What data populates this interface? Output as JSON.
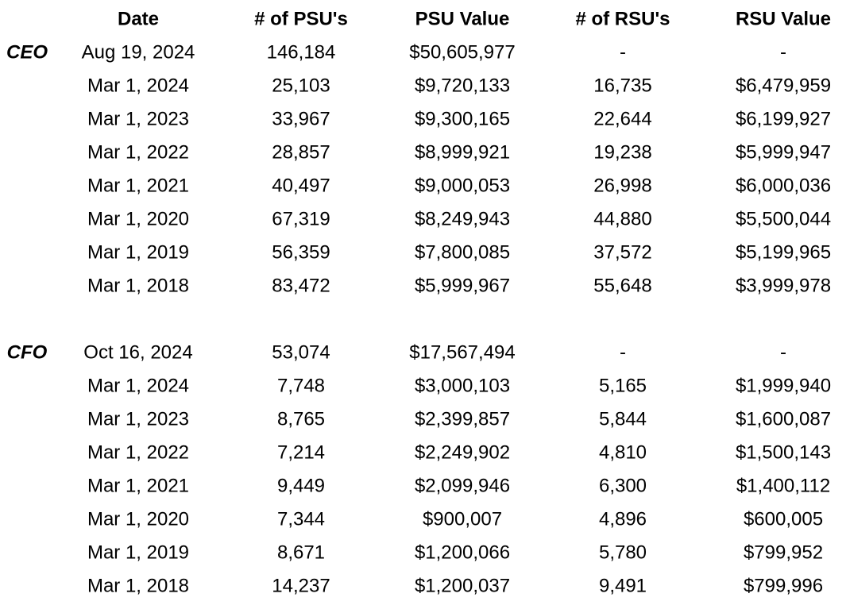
{
  "table": {
    "headers": [
      "Date",
      "# of PSU's",
      "PSU Value",
      "# of RSU's",
      "RSU Value"
    ],
    "groups": [
      {
        "label": "CEO",
        "rows": [
          [
            "Aug 19, 2024",
            "146,184",
            "$50,605,977",
            "-",
            "-"
          ],
          [
            "Mar 1, 2024",
            "25,103",
            "$9,720,133",
            "16,735",
            "$6,479,959"
          ],
          [
            "Mar 1, 2023",
            "33,967",
            "$9,300,165",
            "22,644",
            "$6,199,927"
          ],
          [
            "Mar 1, 2022",
            "28,857",
            "$8,999,921",
            "19,238",
            "$5,999,947"
          ],
          [
            "Mar 1, 2021",
            "40,497",
            "$9,000,053",
            "26,998",
            "$6,000,036"
          ],
          [
            "Mar 1, 2020",
            "67,319",
            "$8,249,943",
            "44,880",
            "$5,500,044"
          ],
          [
            "Mar 1, 2019",
            "56,359",
            "$7,800,085",
            "37,572",
            "$5,199,965"
          ],
          [
            "Mar 1, 2018",
            "83,472",
            "$5,999,967",
            "55,648",
            "$3,999,978"
          ]
        ]
      },
      {
        "label": "CFO",
        "rows": [
          [
            "Oct 16, 2024",
            "53,074",
            "$17,567,494",
            "-",
            "-"
          ],
          [
            "Mar 1, 2024",
            "7,748",
            "$3,000,103",
            "5,165",
            "$1,999,940"
          ],
          [
            "Mar 1, 2023",
            "8,765",
            "$2,399,857",
            "5,844",
            "$1,600,087"
          ],
          [
            "Mar 1, 2022",
            "7,214",
            "$2,249,902",
            "4,810",
            "$1,500,143"
          ],
          [
            "Mar 1, 2021",
            "9,449",
            "$2,099,946",
            "6,300",
            "$1,400,112"
          ],
          [
            "Mar 1, 2020",
            "7,344",
            "$900,007",
            "4,896",
            "$600,005"
          ],
          [
            "Mar 1, 2019",
            "8,671",
            "$1,200,066",
            "5,780",
            "$799,952"
          ],
          [
            "Mar 1, 2018",
            "14,237",
            "$1,200,037",
            "9,491",
            "$799,996"
          ]
        ]
      }
    ]
  }
}
